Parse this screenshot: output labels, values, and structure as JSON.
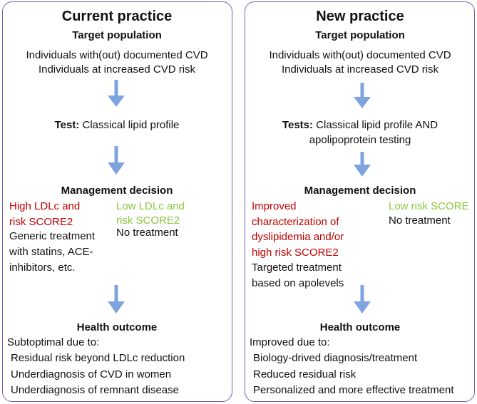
{
  "left": {
    "title": "Current practice",
    "target": {
      "heading": "Target population",
      "lines": [
        "Individuals with(out) documented CVD",
        "Individuals at increased CVD risk"
      ]
    },
    "test": {
      "label": "Test:",
      "lines": [
        "Classical lipid profile"
      ]
    },
    "decision": {
      "heading": "Management decision",
      "high": [
        "High LDLc and",
        "risk SCORE2"
      ],
      "high_action": [
        "Generic treatment",
        "with statins, ACE-",
        "inhibitors, etc."
      ],
      "low": [
        "Low LDLc and",
        "risk SCORE2"
      ],
      "low_action": [
        "No treatment"
      ]
    },
    "outcome": {
      "heading": "Health outcome",
      "intro": "Subtoptimal due to:",
      "items": [
        "Residual risk beyond LDLc reduction",
        "Underdiagnosis of CVD in women",
        "Underdiagnosis of remnant disease"
      ]
    }
  },
  "right": {
    "title": "New practice",
    "target": {
      "heading": "Target population",
      "lines": [
        "Individuals with(out) documented CVD",
        "Individuals at increased CVD risk"
      ]
    },
    "test": {
      "label": "Tests:",
      "lines": [
        "Classical lipid profile AND",
        "apolipoprotein testing"
      ]
    },
    "decision": {
      "heading": "Management decision",
      "high": [
        "Improved",
        "characterization of",
        "dyslipidemia and/or",
        "high risk SCORE2"
      ],
      "high_action": [
        "Targeted treatment",
        "based on apolevels"
      ],
      "low": [
        "Low risk SCORE"
      ],
      "low_action": [
        "No treatment"
      ]
    },
    "outcome": {
      "heading": "Health outcome",
      "intro": "Improved due to:",
      "items": [
        "Biology-drived diagnosis/treatment",
        "Reduced residual risk",
        "Personalized and more effective treatment"
      ]
    }
  }
}
